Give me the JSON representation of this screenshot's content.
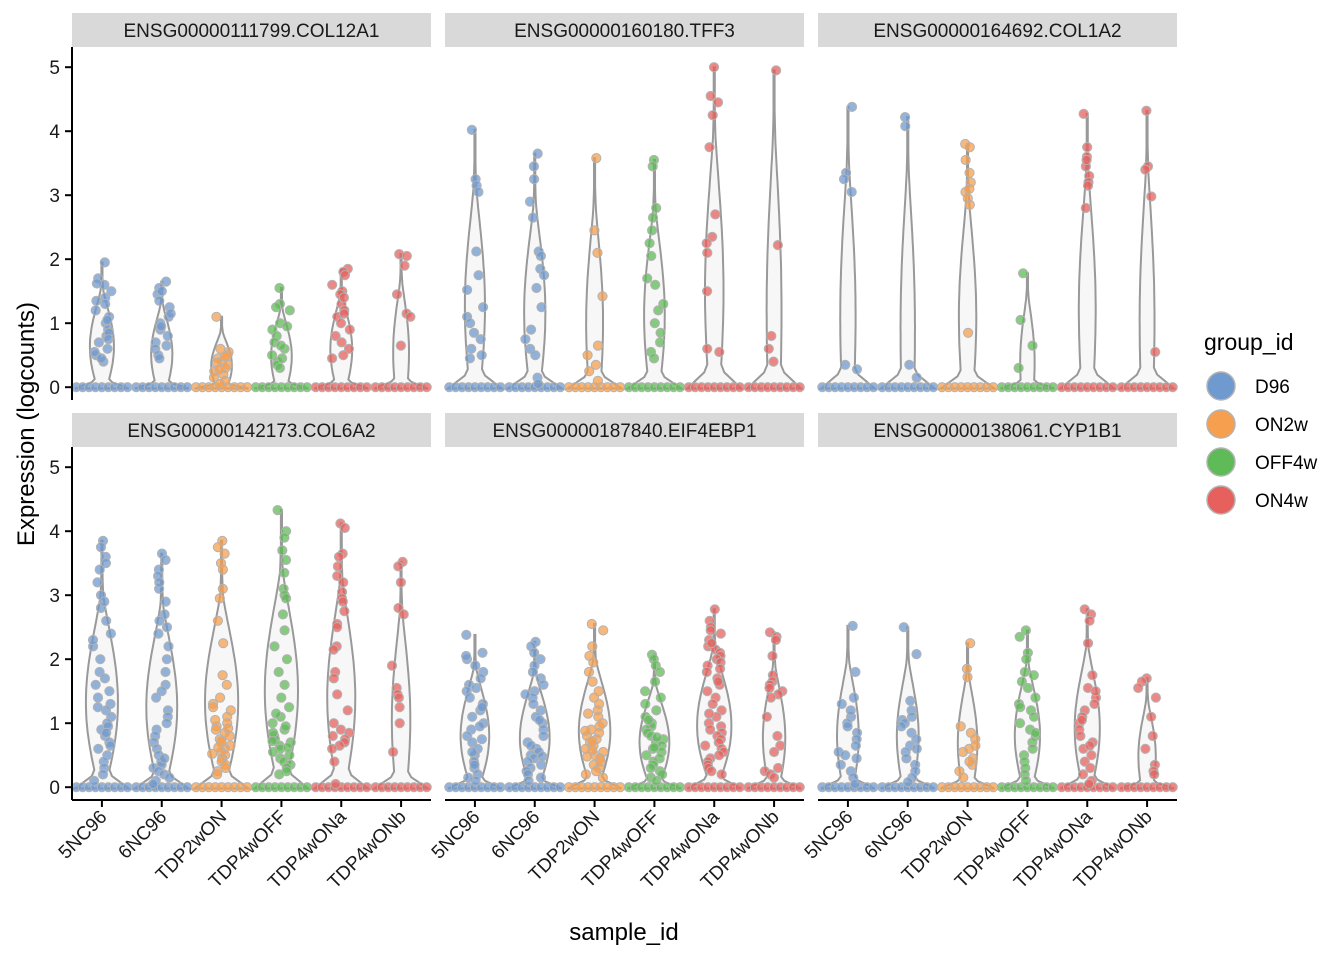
{
  "chart_data": {
    "type": "violin",
    "facets": [
      {
        "label": "ENSG00000111799.COL12A1"
      },
      {
        "label": "ENSG00000160180.TFF3"
      },
      {
        "label": "ENSG00000164692.COL1A2"
      },
      {
        "label": "ENSG00000142173.COL6A2"
      },
      {
        "label": "ENSG00000187840.EIF4EBP1"
      },
      {
        "label": "ENSG00000138061.CYP1B1"
      }
    ],
    "categories": [
      "5NC96",
      "6NC96",
      "TDP2wON",
      "TDP4wOFF",
      "TDP4wONa",
      "TDP4wONb"
    ],
    "category_groups": [
      "D96",
      "D96",
      "ON2w",
      "OFF4w",
      "ON4w",
      "ON4w"
    ],
    "xlabel": "sample_id",
    "ylabel": "Expression (logcounts)",
    "ylim": [
      -0.2,
      5.3
    ],
    "yticks": [
      0,
      1,
      2,
      3,
      4,
      5
    ],
    "legend": {
      "title": "group_id",
      "position": "right",
      "items": [
        {
          "label": "D96",
          "color": "#6F9ACF"
        },
        {
          "label": "ON2w",
          "color": "#F59F4F"
        },
        {
          "label": "OFF4w",
          "color": "#5FBB57"
        },
        {
          "label": "ON4w",
          "color": "#E6615E"
        }
      ]
    },
    "violin_max": [
      [
        1.95,
        1.65,
        1.1,
        1.55,
        1.85,
        2.08
      ],
      [
        4.02,
        3.65,
        3.58,
        3.55,
        5.0,
        4.95
      ],
      [
        4.38,
        4.22,
        3.8,
        1.78,
        4.27,
        4.32
      ],
      [
        3.85,
        3.65,
        3.85,
        4.33,
        4.12,
        3.52
      ],
      [
        2.38,
        2.27,
        2.55,
        2.07,
        2.78,
        2.42
      ],
      [
        2.52,
        2.5,
        2.25,
        2.45,
        2.78,
        1.7
      ]
    ],
    "points": [
      [
        [
          1.95,
          1.7,
          1.6,
          1.5,
          1.4,
          1.3,
          1.2,
          1.1,
          1.0,
          0.9,
          0.8,
          0.7,
          0.6,
          0.5,
          0.4,
          1.62,
          1.35,
          1.05,
          0.85,
          0.75,
          0.55,
          0.45
        ],
        [
          1.65,
          1.55,
          1.45,
          1.35,
          1.25,
          1.1,
          1.0,
          0.9,
          0.8,
          0.7,
          0.6,
          0.5,
          0.45,
          1.5,
          1.15,
          0.95,
          0.65
        ],
        [
          1.1,
          0.6,
          0.55,
          0.5,
          0.45,
          0.4,
          0.35,
          0.3,
          0.25,
          0.2,
          0.15,
          0.1,
          0.05,
          0.48,
          0.38,
          0.28
        ],
        [
          1.55,
          1.3,
          1.2,
          1.0,
          0.9,
          0.8,
          0.7,
          0.6,
          0.5,
          0.4,
          0.35,
          0.3,
          1.25,
          0.95,
          0.65,
          0.45
        ],
        [
          1.85,
          1.8,
          1.75,
          1.6,
          1.5,
          1.45,
          1.3,
          1.2,
          1.1,
          1.0,
          0.9,
          0.8,
          0.7,
          0.6,
          0.5,
          0.45,
          1.4,
          1.15
        ],
        [
          2.08,
          2.05,
          1.9,
          1.45,
          1.15,
          1.1,
          0.65
        ]
      ],
      [
        [
          4.02,
          3.25,
          3.15,
          3.05,
          2.12,
          1.75,
          1.52,
          1.25,
          1.1,
          1.0,
          0.85,
          0.75,
          0.6,
          0.5,
          0.45
        ],
        [
          3.65,
          3.45,
          3.25,
          2.9,
          2.65,
          2.12,
          2.05,
          1.85,
          1.75,
          1.55,
          1.25,
          0.9,
          0.75,
          0.6,
          0.5,
          0.15,
          0.05
        ],
        [
          3.58,
          2.45,
          2.1,
          1.42,
          0.65,
          0.5,
          0.35,
          0.25,
          0.1
        ],
        [
          3.55,
          3.45,
          2.8,
          2.65,
          2.45,
          2.25,
          2.05,
          1.7,
          1.6,
          1.3,
          1.2,
          1.0,
          0.85,
          0.7,
          0.55,
          0.45
        ],
        [
          5.0,
          4.55,
          4.45,
          4.25,
          3.75,
          2.7,
          2.35,
          2.25,
          2.1,
          1.5,
          0.6,
          0.55
        ],
        [
          4.95,
          2.22,
          0.8,
          0.6,
          0.4
        ]
      ],
      [
        [
          4.38,
          3.35,
          3.25,
          3.05,
          0.35,
          0.28
        ],
        [
          4.22,
          4.08,
          0.35,
          0.15
        ],
        [
          3.8,
          3.75,
          3.55,
          3.2,
          3.05,
          2.95,
          2.85,
          0.85,
          3.35,
          3.1
        ],
        [
          1.78,
          1.05,
          0.65,
          0.3
        ],
        [
          4.27,
          3.75,
          3.6,
          3.45,
          3.3,
          3.2,
          3.15,
          2.8,
          3.55
        ],
        [
          4.32,
          3.45,
          3.4,
          2.98,
          0.55
        ]
      ],
      [
        [
          3.85,
          3.75,
          3.6,
          3.4,
          3.2,
          3.0,
          2.8,
          2.6,
          2.4,
          2.2,
          2.0,
          1.8,
          1.6,
          1.5,
          1.4,
          1.3,
          1.2,
          1.1,
          1.0,
          0.9,
          0.8,
          0.7,
          0.6,
          0.5,
          0.4,
          0.3,
          0.2,
          0.1,
          3.5,
          2.9,
          2.3,
          1.7,
          1.25,
          0.95,
          0.85,
          0.65
        ],
        [
          3.65,
          3.55,
          3.4,
          3.3,
          3.1,
          2.9,
          2.7,
          2.6,
          2.4,
          2.2,
          2.0,
          1.8,
          1.6,
          1.4,
          1.2,
          1.1,
          1.0,
          0.9,
          0.8,
          0.7,
          0.6,
          0.5,
          0.4,
          0.35,
          0.3,
          0.25,
          0.2,
          0.15,
          0.1,
          0.05,
          3.2,
          2.5,
          1.5,
          0.45
        ],
        [
          3.85,
          3.75,
          3.65,
          3.5,
          3.4,
          3.1,
          2.95,
          2.6,
          2.25,
          1.75,
          1.6,
          1.4,
          1.3,
          1.2,
          1.1,
          1.0,
          0.95,
          0.9,
          0.85,
          0.8,
          0.75,
          0.7,
          0.65,
          0.6,
          0.55,
          0.5,
          0.45,
          0.4,
          0.35,
          0.3,
          0.25,
          0.2,
          1.25,
          1.05,
          0.92,
          0.72,
          0.62,
          0.52
        ],
        [
          4.33,
          4.0,
          3.9,
          3.7,
          3.55,
          3.35,
          3.1,
          3.0,
          2.95,
          2.7,
          2.45,
          2.2,
          2.0,
          1.8,
          1.6,
          1.4,
          1.25,
          1.1,
          1.0,
          0.9,
          0.8,
          0.75,
          0.7,
          0.65,
          0.6,
          0.55,
          0.5,
          0.45,
          0.4,
          0.35,
          0.3,
          0.25,
          0.2,
          1.15,
          0.95,
          0.85,
          0.72,
          0.62
        ],
        [
          4.12,
          4.05,
          3.65,
          3.6,
          3.45,
          3.3,
          3.05,
          2.95,
          2.9,
          2.55,
          2.5,
          2.2,
          2.15,
          1.8,
          1.7,
          1.45,
          1.2,
          1.0,
          0.9,
          0.85,
          0.8,
          0.75,
          0.7,
          0.65,
          0.6,
          0.4,
          0.05,
          3.2,
          2.75
        ],
        [
          3.52,
          3.45,
          3.2,
          2.8,
          2.7,
          1.9,
          1.55,
          1.45,
          1.4,
          1.25,
          1.0,
          0.55
        ]
      ],
      [
        [
          2.38,
          2.1,
          2.0,
          1.9,
          1.8,
          1.7,
          1.6,
          1.5,
          1.4,
          1.3,
          1.2,
          1.1,
          1.0,
          0.9,
          0.8,
          0.7,
          0.6,
          0.5,
          0.4,
          0.3,
          0.2,
          0.1,
          2.05,
          1.55,
          1.25,
          0.95,
          0.75,
          0.55,
          0.35,
          0.15
        ],
        [
          2.27,
          2.2,
          2.1,
          2.0,
          1.9,
          1.8,
          1.7,
          1.6,
          1.5,
          1.4,
          1.3,
          1.2,
          1.1,
          1.0,
          0.9,
          0.8,
          0.7,
          0.6,
          0.55,
          0.5,
          0.45,
          0.4,
          0.35,
          0.3,
          0.25,
          0.2,
          0.15,
          0.1,
          1.45,
          1.05,
          0.65,
          0.48
        ],
        [
          2.55,
          2.45,
          2.2,
          2.05,
          1.95,
          1.8,
          1.65,
          1.5,
          1.4,
          1.3,
          1.2,
          1.1,
          1.0,
          0.95,
          0.9,
          0.85,
          0.8,
          0.75,
          0.7,
          0.65,
          0.6,
          0.55,
          0.5,
          0.45,
          0.4,
          0.35,
          0.3,
          0.25,
          0.2,
          0.15,
          1.15,
          0.88,
          0.72,
          0.58,
          0.48
        ],
        [
          2.07,
          2.0,
          1.9,
          1.8,
          1.65,
          1.5,
          1.4,
          1.3,
          1.2,
          1.1,
          1.0,
          0.95,
          0.9,
          0.85,
          0.8,
          0.75,
          0.7,
          0.65,
          0.6,
          0.55,
          0.5,
          0.45,
          0.4,
          0.35,
          0.3,
          0.25,
          0.2,
          0.15,
          0.1,
          1.05,
          0.78,
          0.62
        ],
        [
          2.78,
          2.6,
          2.5,
          2.45,
          2.4,
          2.3,
          2.2,
          2.15,
          2.1,
          2.05,
          2.0,
          1.95,
          1.9,
          1.85,
          1.8,
          1.7,
          1.6,
          1.5,
          1.4,
          1.3,
          1.2,
          1.1,
          1.0,
          0.95,
          0.9,
          0.85,
          0.8,
          0.75,
          0.7,
          0.65,
          0.6,
          0.55,
          0.5,
          0.45,
          0.4,
          0.35,
          0.3,
          0.25,
          0.2,
          2.25,
          1.65,
          1.15
        ],
        [
          2.42,
          2.35,
          2.3,
          2.05,
          1.75,
          1.65,
          1.6,
          1.55,
          1.5,
          1.45,
          1.4,
          1.1,
          0.8,
          0.65,
          0.55,
          0.3,
          0.25,
          0.2,
          0.15
        ]
      ],
      [
        [
          2.52,
          1.8,
          1.4,
          1.3,
          1.1,
          1.0,
          0.95,
          0.85,
          0.75,
          0.65,
          0.55,
          0.45,
          0.35,
          0.25,
          0.15,
          0.05,
          1.2,
          0.5
        ],
        [
          2.5,
          2.08,
          1.35,
          1.2,
          1.1,
          1.05,
          1.0,
          0.85,
          0.75,
          0.65,
          0.55,
          0.45,
          0.35,
          0.25,
          0.15,
          0.08,
          0.95,
          0.6
        ],
        [
          2.25,
          1.85,
          1.72,
          0.95,
          0.85,
          0.75,
          0.65,
          0.55,
          0.45,
          0.35,
          0.25,
          0.15,
          0.6,
          0.4
        ],
        [
          2.45,
          2.35,
          2.1,
          2.0,
          1.8,
          1.65,
          1.55,
          1.4,
          1.3,
          1.2,
          1.1,
          1.0,
          0.9,
          0.8,
          0.7,
          0.6,
          0.5,
          0.4,
          0.3,
          0.2,
          0.1,
          1.75,
          1.25,
          0.85
        ],
        [
          2.78,
          2.7,
          2.6,
          2.25,
          1.75,
          1.55,
          1.4,
          1.3,
          1.2,
          1.1,
          1.0,
          0.9,
          0.8,
          0.7,
          0.6,
          0.5,
          0.4,
          0.3,
          0.2,
          0.1,
          0.05,
          1.5,
          1.05,
          0.65
        ],
        [
          1.7,
          1.65,
          1.55,
          1.4,
          1.1,
          0.8,
          0.6,
          0.35,
          0.25,
          0.2
        ]
      ]
    ]
  }
}
